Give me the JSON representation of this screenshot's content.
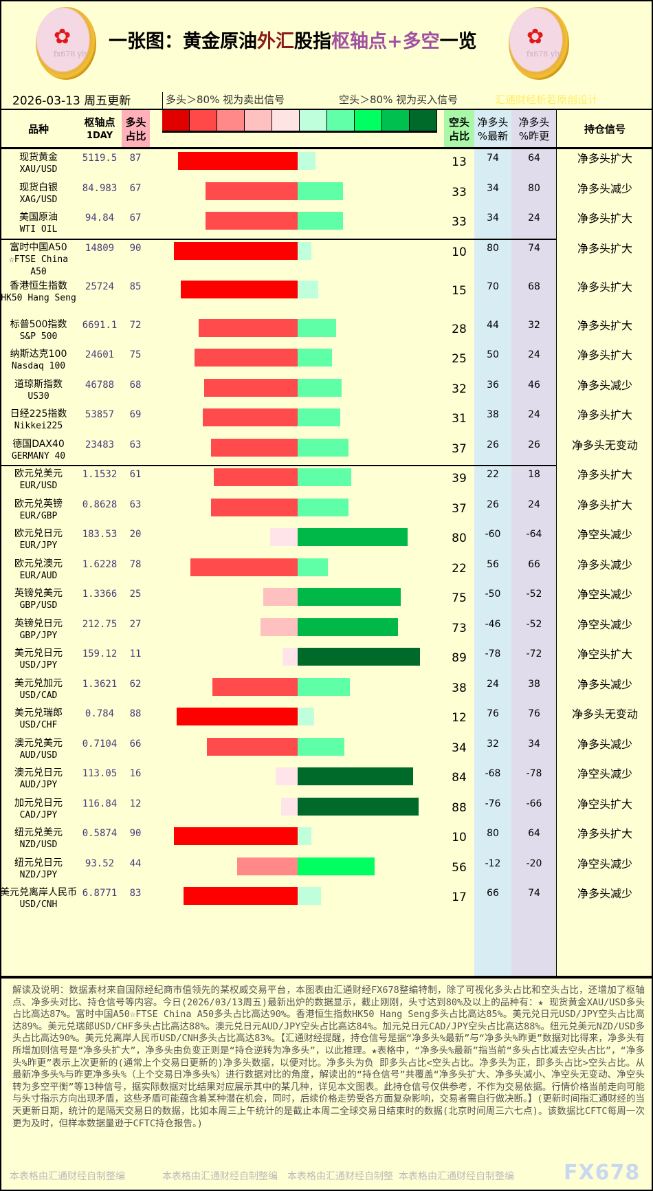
{
  "title": {
    "p1": "一张图：黄金原油",
    "p2": "外汇",
    "p3": "股指",
    "p4": "枢轴点+多空",
    "p5": "一览",
    "colors": {
      "p2": "#8b1a1a",
      "p4": "#a050a0"
    }
  },
  "logo": {
    "glyph": "✿",
    "watermark": "fx678 yly"
  },
  "update_date": "2026-03-13 周五更新",
  "legend": {
    "long_text": "多头＞80% 视为卖出信号",
    "short_text": "空头＞80% 视为买入信号",
    "red_scale": [
      "#e00000",
      "#ff4848",
      "#ff8888",
      "#ffc0c0",
      "#ffe4e4"
    ],
    "green_scale": [
      "#c0ffdc",
      "#60ffa8",
      "#00ff60",
      "#00c050",
      "#006a2a"
    ]
  },
  "credit": "汇通财经析若原创设计",
  "headers": {
    "name": "品种",
    "pivot": "枢轴点",
    "pivot_sub": "1DAY",
    "long": "多头",
    "long_sub": "占比",
    "short": "空头",
    "short_sub": "占比",
    "net_latest": "净多头",
    "net_latest_sub": "%最新",
    "net_prev": "净多头",
    "net_prev_sub": "%昨更",
    "signal": "持仓信号"
  },
  "colors": {
    "long_header": "#ffb0b8",
    "short_header": "#a8f8a8",
    "net_latest_bg": "#d8ecf4",
    "net_prev_bg": "#e0dcec",
    "bar_long": [
      "#ff0000",
      "#ff4b4b",
      "#ff8888",
      "#ffc0c0",
      "#ffe4ea"
    ],
    "bar_short": [
      "#c0ffdc",
      "#5fffa8",
      "#00ff60",
      "#00b848",
      "#006a2a"
    ]
  },
  "rows": [
    {
      "name": "现货黄金",
      "code": "XAU/USD",
      "pivot": "5119.5",
      "long": 87,
      "short": 13,
      "net_latest": 74,
      "net_prev": 64,
      "signal": "净多头扩大"
    },
    {
      "name": "现货白银",
      "code": "XAG/USD",
      "pivot": "84.983",
      "long": 67,
      "short": 33,
      "net_latest": 34,
      "net_prev": 80,
      "signal": "净多头减少"
    },
    {
      "name": "美国原油",
      "code": "WTI OIL",
      "pivot": "94.84",
      "long": 67,
      "short": 33,
      "net_latest": 34,
      "net_prev": 24,
      "signal": "净多头扩大"
    },
    {
      "name": "富时中国A50",
      "code": "☆FTSE China A50",
      "pivot": "14809",
      "long": 90,
      "short": 10,
      "net_latest": 80,
      "net_prev": 74,
      "signal": "净多头扩大"
    },
    {
      "name": "香港恒生指数",
      "code": "HK50 Hang Seng",
      "pivot": "25724",
      "long": 85,
      "short": 15,
      "net_latest": 70,
      "net_prev": 68,
      "signal": "净多头扩大"
    },
    {
      "name": "标普500指数",
      "code": "S&P 500",
      "pivot": "6691.1",
      "long": 72,
      "short": 28,
      "net_latest": 44,
      "net_prev": 32,
      "signal": "净多头扩大"
    },
    {
      "name": "纳斯达克100",
      "code": "Nasdaq 100",
      "pivot": "24601",
      "long": 75,
      "short": 25,
      "net_latest": 50,
      "net_prev": 24,
      "signal": "净多头扩大"
    },
    {
      "name": "道琼斯指数",
      "code": "US30",
      "pivot": "46788",
      "long": 68,
      "short": 32,
      "net_latest": 36,
      "net_prev": 46,
      "signal": "净多头减少"
    },
    {
      "name": "日经225指数",
      "code": "Nikkei225",
      "pivot": "53857",
      "long": 69,
      "short": 31,
      "net_latest": 38,
      "net_prev": 24,
      "signal": "净多头扩大"
    },
    {
      "name": "德国DAX40",
      "code": "GERMANY 40",
      "pivot": "23483",
      "long": 63,
      "short": 37,
      "net_latest": 26,
      "net_prev": 26,
      "signal": "净多头无变动"
    },
    {
      "name": "欧元兑美元",
      "code": "EUR/USD",
      "pivot": "1.1532",
      "long": 61,
      "short": 39,
      "net_latest": 22,
      "net_prev": 18,
      "signal": "净多头扩大"
    },
    {
      "name": "欧元兑英镑",
      "code": "EUR/GBP",
      "pivot": "0.8628",
      "long": 63,
      "short": 37,
      "net_latest": 26,
      "net_prev": 24,
      "signal": "净多头扩大"
    },
    {
      "name": "欧元兑日元",
      "code": "EUR/JPY",
      "pivot": "183.53",
      "long": 20,
      "short": 80,
      "net_latest": -60,
      "net_prev": -64,
      "signal": "净空头减少"
    },
    {
      "name": "欧元兑澳元",
      "code": "EUR/AUD",
      "pivot": "1.6228",
      "long": 78,
      "short": 22,
      "net_latest": 56,
      "net_prev": 66,
      "signal": "净多头减少"
    },
    {
      "name": "英镑兑美元",
      "code": "GBP/USD",
      "pivot": "1.3366",
      "long": 25,
      "short": 75,
      "net_latest": -50,
      "net_prev": -52,
      "signal": "净空头减少"
    },
    {
      "name": "英镑兑日元",
      "code": "GBP/JPY",
      "pivot": "212.75",
      "long": 27,
      "short": 73,
      "net_latest": -46,
      "net_prev": -52,
      "signal": "净空头减少"
    },
    {
      "name": "美元兑日元",
      "code": "USD/JPY",
      "pivot": "159.12",
      "long": 11,
      "short": 89,
      "net_latest": -78,
      "net_prev": -72,
      "signal": "净空头扩大"
    },
    {
      "name": "美元兑加元",
      "code": "USD/CAD",
      "pivot": "1.3621",
      "long": 62,
      "short": 38,
      "net_latest": 24,
      "net_prev": 38,
      "signal": "净多头减少"
    },
    {
      "name": "美元兑瑞郎",
      "code": "USD/CHF",
      "pivot": "0.784",
      "long": 88,
      "short": 12,
      "net_latest": 76,
      "net_prev": 76,
      "signal": "净多头无变动"
    },
    {
      "name": "澳元兑美元",
      "code": "AUD/USD",
      "pivot": "0.7104",
      "long": 66,
      "short": 34,
      "net_latest": 32,
      "net_prev": 34,
      "signal": "净多头减少"
    },
    {
      "name": "澳元兑日元",
      "code": "AUD/JPY",
      "pivot": "113.05",
      "long": 16,
      "short": 84,
      "net_latest": -68,
      "net_prev": -78,
      "signal": "净空头减少"
    },
    {
      "name": "加元兑日元",
      "code": "CAD/JPY",
      "pivot": "116.84",
      "long": 12,
      "short": 88,
      "net_latest": -76,
      "net_prev": -66,
      "signal": "净空头扩大"
    },
    {
      "name": "纽元兑美元",
      "code": "NZD/USD",
      "pivot": "0.5874",
      "long": 90,
      "short": 10,
      "net_latest": 80,
      "net_prev": 64,
      "signal": "净多头扩大"
    },
    {
      "name": "纽元兑日元",
      "code": "NZD/JPY",
      "pivot": "93.52",
      "long": 44,
      "short": 56,
      "net_latest": -12,
      "net_prev": -20,
      "signal": "净空头减少"
    },
    {
      "name": "美元兑离岸人民币",
      "code": "USD/CNH",
      "pivot": "6.8771",
      "long": 83,
      "short": 17,
      "net_latest": 66,
      "net_prev": 74,
      "signal": "净多头减少"
    }
  ],
  "footer": "解读及说明：数据素材来自国际经纪商市值领先的某权威交易平台，本图表由汇通财经FX678整编特制，除了可视化多头占比和空头占比，还增加了枢轴点、净多头对比、持仓信号等内容。今日(2026/03/13周五)最新出炉的数据显示，截止刚刚，头寸达到80%及以上的品种有：★ 现货黄金XAU/USD多头占比高达87%。富时中国A50☆FTSE China A50多头占比高达90%。香港恒生指数HK50 Hang Seng多头占比高达85%。美元兑日元USD/JPY空头占比高达89%。美元兑瑞郎USD/CHF多头占比高达88%。澳元兑日元AUD/JPY空头占比高达84%。加元兑日元CAD/JPY空头占比高达88%。纽元兑美元NZD/USD多头占比高达90%。美元兑离岸人民币USD/CNH多头占比高达83%。【汇通财经提醒，持仓信号是据“净多头%最新”与“净多头%昨更”数据对比得来，净多头有所增加则信号是“净多头扩大”，净多头由负变正则是“持仓逆转为净多头”，以此推理。★表格中，“净多头%最新”指当前“多头占比减去空头占比”，“净多头%昨更”表示上次更新的(通常上个交易日更新的)净多头数据，以便对比。净多头为负 即多头占比<空头占比。净多头为正，即多头占比>空头占比。从最新净多头%与昨更净多头%（上个交易日净多头%）进行数据对比的角度，解读出的“持仓信号”共覆盖“净多头扩大、净多头减小、净空头无变动、净空头转为多空平衡”等13种信号，据实际数据对比结果对应展示其中的某几种，详见本文图表。此持仓信号仅供参考，不作为交易依据。行情价格当前走向可能与头寸指示方向出现矛盾，这些矛盾可能蕴含着某种潜在机会，同时，后续价格走势受各方面复杂影响，交易者需自行做决断。】(更新时间指汇通财经的当天更新日期，统计的是隔天交易日的数据，比如本周三上午统计的是截止本周二全球交易日结束时的数据(北京时间周三六七点)。该数据比CFTC每周一次更为及时，但样本数据量逊于CFTC持仓报告。)",
  "footer_marks": [
    "本表格由汇通财经自制整编",
    "本表格由汇通财经自制整编",
    "本表格由汇通财经自制整",
    "本表格由汇通财经自制整编"
  ],
  "brand": "FX678"
}
